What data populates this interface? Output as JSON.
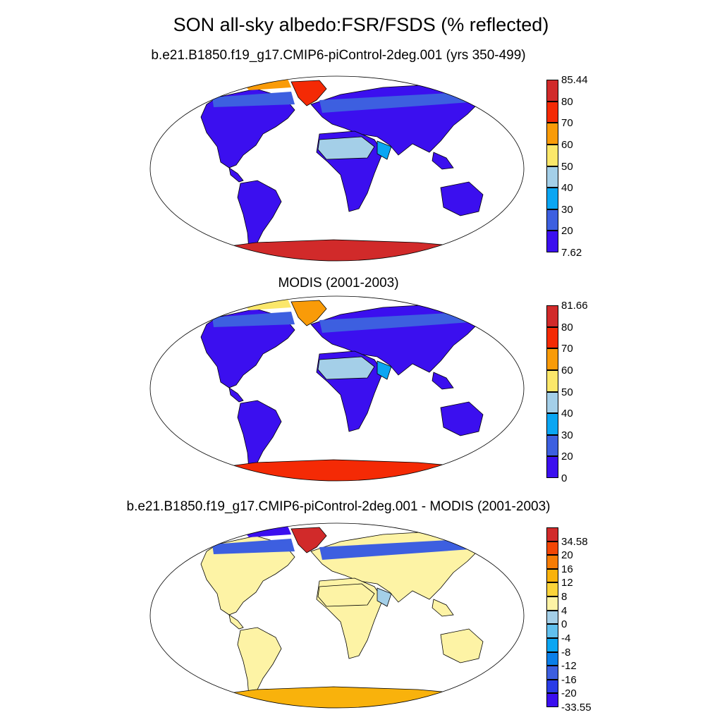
{
  "title": "SON all-sky albedo:FSR/FSDS (% reflected)",
  "panels": [
    {
      "subtitle": "b.e21.B1850.f19_g17.CMIP6-piControl-2deg.001 (yrs 350-499)",
      "colorbar": {
        "colors": [
          "#3b0fef",
          "#3d5fe0",
          "#0aa6f3",
          "#a4cfe8",
          "#fbe76a",
          "#f99b08",
          "#f42a05",
          "#d12a2a"
        ],
        "labels": [
          "7.62",
          "20",
          "30",
          "40",
          "50",
          "60",
          "70",
          "80",
          "85.44"
        ]
      },
      "fills": {
        "land": "#3b0fef",
        "desert": "#a4cfe8",
        "desert2": "#0aa6f3",
        "antarctica": "#d12a2a",
        "greenland": "#f42a05",
        "arctic": "#f99b08",
        "highlat": "#3d5fe0"
      }
    },
    {
      "subtitle": "MODIS (2001-2003)",
      "colorbar": {
        "colors": [
          "#3b0fef",
          "#3d5fe0",
          "#0aa6f3",
          "#a4cfe8",
          "#fbe76a",
          "#f99b08",
          "#f42a05",
          "#d12a2a"
        ],
        "labels": [
          "0",
          "20",
          "30",
          "40",
          "50",
          "60",
          "70",
          "80",
          "81.66"
        ]
      },
      "fills": {
        "land": "#3b0fef",
        "desert": "#a4cfe8",
        "desert2": "#0aa6f3",
        "antarctica": "#f42a05",
        "greenland": "#f99b08",
        "arctic": "#fbe76a",
        "highlat": "#3d5fe0"
      }
    },
    {
      "subtitle": "b.e21.B1850.f19_g17.CMIP6-piControl-2deg.001 - MODIS (2001-2003)",
      "colorbar": {
        "colors": [
          "#3b0fef",
          "#2a3ce6",
          "#3d5fe0",
          "#0a7fe8",
          "#0aa6f3",
          "#61c0ee",
          "#a4cfe8",
          "#fdf3a5",
          "#fbd43a",
          "#f9b20c",
          "#f67c05",
          "#f24605",
          "#d12a2a"
        ],
        "labels": [
          "-33.55",
          "-20",
          "-16",
          "-12",
          "-8",
          "-4",
          "0",
          "4",
          "8",
          "12",
          "16",
          "20",
          "34.58"
        ]
      },
      "fills": {
        "land": "#fdf3a5",
        "desert": "#fdf3a5",
        "desert2": "#a4cfe8",
        "antarctica": "#f9b20c",
        "greenland": "#d12a2a",
        "arctic": "#3b0fef",
        "highlat": "#3d5fe0"
      }
    }
  ]
}
